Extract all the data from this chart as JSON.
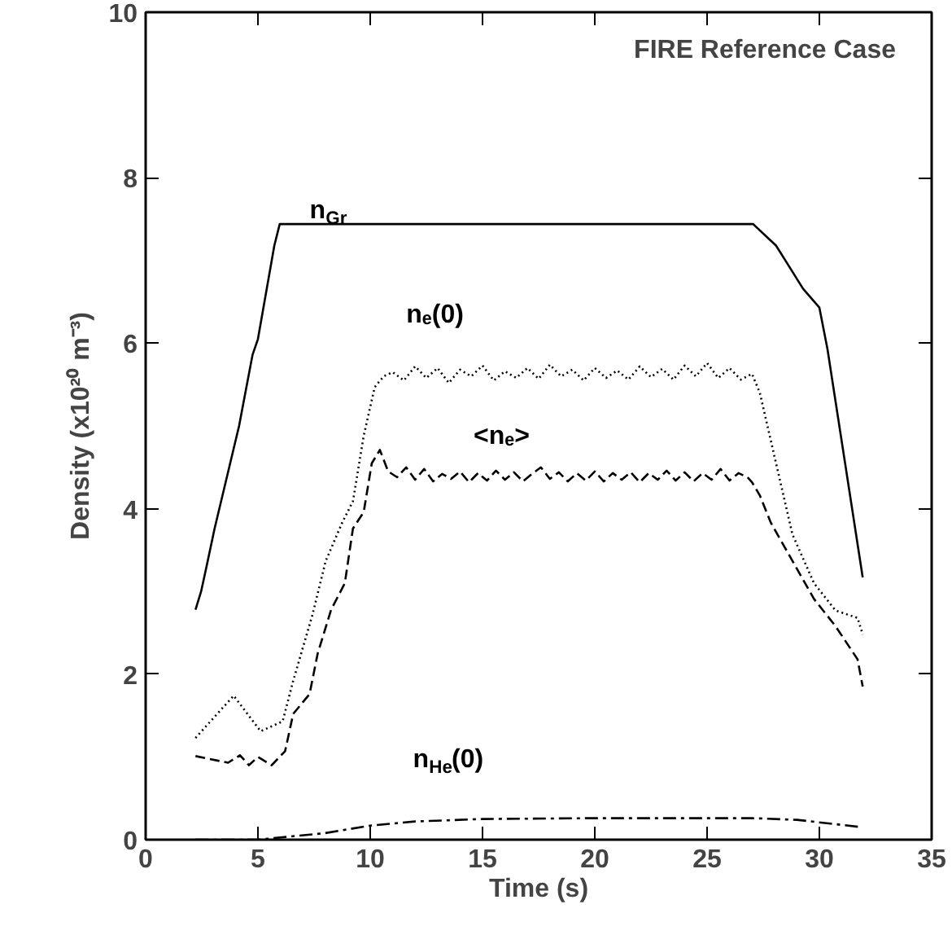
{
  "chart_data": {
    "type": "line",
    "title": "FIRE Reference Case",
    "xlabel": "Time (s)",
    "ylabel": "Density (x10²⁰ m⁻³)",
    "xlim": [
      0,
      35
    ],
    "ylim": [
      0,
      10
    ],
    "xticks": [
      0,
      5,
      10,
      15,
      20,
      25,
      30,
      35
    ],
    "yticks": [
      0,
      2,
      4,
      6,
      8,
      10
    ],
    "grid": false,
    "series": [
      {
        "name": "n$_{Gr}$",
        "color": "#000000",
        "line_style": "solid",
        "x": [
          2.22,
          2.47,
          2.71,
          3.07,
          4.16,
          4.76,
          5.0,
          5.73,
          5.97,
          27.05,
          28.07,
          28.67,
          29.27,
          30.0,
          30.36,
          31.93
        ],
        "values": [
          2.78,
          3.0,
          3.3,
          3.76,
          5.0,
          5.86,
          6.05,
          7.18,
          7.44,
          7.44,
          7.18,
          6.92,
          6.66,
          6.43,
          5.93,
          3.17
        ]
      },
      {
        "name": "nₑ(0)",
        "color": "#000000",
        "line_style": "dotted",
        "x": [
          2.22,
          3.92,
          5.12,
          6.1,
          6.57,
          7.42,
          8.02,
          8.75,
          9.23,
          9.71,
          10.2,
          10.6,
          11.0,
          11.5,
          12.0,
          12.5,
          13.0,
          13.5,
          14.0,
          14.5,
          15.0,
          15.5,
          16.0,
          16.5,
          17.0,
          17.5,
          18.0,
          18.5,
          19.0,
          19.5,
          20.0,
          20.5,
          21.0,
          21.5,
          22.0,
          22.5,
          23.0,
          23.5,
          24.0,
          24.5,
          25.0,
          25.5,
          26.0,
          26.5,
          27.0,
          27.35,
          28.07,
          28.8,
          29.76,
          30.72,
          31.7,
          31.93
        ],
        "values": [
          1.23,
          1.74,
          1.31,
          1.43,
          1.92,
          2.71,
          3.37,
          3.83,
          4.09,
          4.88,
          5.47,
          5.6,
          5.65,
          5.55,
          5.72,
          5.58,
          5.7,
          5.52,
          5.68,
          5.6,
          5.73,
          5.55,
          5.66,
          5.58,
          5.7,
          5.57,
          5.74,
          5.6,
          5.68,
          5.55,
          5.7,
          5.58,
          5.67,
          5.56,
          5.72,
          5.59,
          5.69,
          5.56,
          5.73,
          5.6,
          5.76,
          5.58,
          5.7,
          5.56,
          5.63,
          5.4,
          4.55,
          3.69,
          3.1,
          2.77,
          2.68,
          2.48
        ]
      },
      {
        "name": "<nₑ>",
        "color": "#000000",
        "line_style": "dashed",
        "x": [
          2.22,
          3.67,
          4.2,
          4.6,
          5.0,
          5.61,
          6.21,
          6.57,
          7.3,
          7.66,
          8.26,
          8.87,
          9.23,
          9.71,
          10.07,
          10.43,
          10.8,
          11.2,
          11.6,
          12.0,
          12.4,
          12.8,
          13.2,
          13.6,
          14.0,
          14.4,
          14.8,
          15.2,
          15.6,
          16.0,
          16.4,
          16.8,
          17.2,
          17.6,
          18.0,
          18.4,
          18.8,
          19.2,
          19.6,
          20.0,
          20.4,
          20.8,
          21.2,
          21.6,
          22.0,
          22.4,
          22.8,
          23.2,
          23.6,
          24.0,
          24.4,
          24.8,
          25.2,
          25.6,
          26.0,
          26.4,
          26.8,
          27.0,
          27.35,
          27.84,
          28.8,
          29.76,
          30.72,
          31.7,
          31.93
        ],
        "values": [
          1.01,
          0.93,
          1.02,
          0.9,
          1.0,
          0.9,
          1.07,
          1.52,
          1.76,
          2.25,
          2.78,
          3.1,
          3.76,
          3.96,
          4.55,
          4.71,
          4.45,
          4.38,
          4.5,
          4.35,
          4.48,
          4.33,
          4.42,
          4.36,
          4.45,
          4.32,
          4.43,
          4.34,
          4.46,
          4.35,
          4.44,
          4.33,
          4.42,
          4.5,
          4.36,
          4.44,
          4.33,
          4.43,
          4.34,
          4.45,
          4.33,
          4.43,
          4.35,
          4.44,
          4.32,
          4.43,
          4.35,
          4.46,
          4.34,
          4.44,
          4.33,
          4.43,
          4.35,
          4.48,
          4.34,
          4.43,
          4.38,
          4.32,
          4.16,
          3.83,
          3.37,
          2.91,
          2.58,
          2.18,
          1.85
        ]
      },
      {
        "name": "n$_{He}$(0)",
        "color": "#000000",
        "line_style": "dashdot",
        "x": [
          2.22,
          5.0,
          8.0,
          10.0,
          12.0,
          15.0,
          20.0,
          27.0,
          29.0,
          31.93
        ],
        "values": [
          0.0,
          0.0,
          0.08,
          0.17,
          0.22,
          0.25,
          0.26,
          0.26,
          0.24,
          0.15
        ]
      }
    ]
  }
}
